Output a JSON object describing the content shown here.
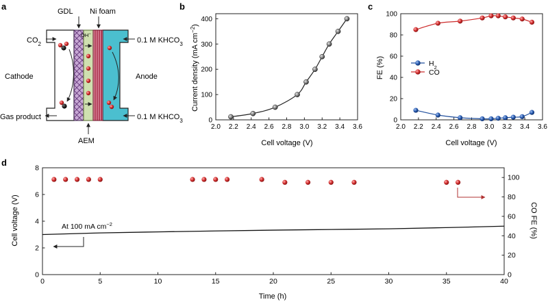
{
  "panels": {
    "a": "a",
    "b": "b",
    "c": "c",
    "d": "d"
  },
  "schematic": {
    "gdl": "GDL",
    "ni_foam": "Ni foam",
    "co2": "CO",
    "co2_sub": "2",
    "electrolyte_top": "0.1 M KHCO",
    "electrolyte_top_sub": "3",
    "electrolyte_bottom": "0.1 M KHCO",
    "electrolyte_bottom_sub": "3",
    "cathode": "Cathode",
    "anode": "Anode",
    "oh": "OH",
    "oh_sup": "−",
    "gas_product": "Gas product",
    "aem": "AEM",
    "colors": {
      "gdl": "#9b6fa8",
      "aem": "#cfe0b0",
      "nifoam": "#a01e3a",
      "anolyte": "#4bbfcf"
    }
  },
  "chart_data": [
    {
      "panel": "b",
      "type": "line",
      "title": "",
      "xlabel": "Cell voltage (V)",
      "ylabel_parts": {
        "main": "Current density (mA cm",
        "sup": "−2",
        "close": ")"
      },
      "xlim": [
        2.0,
        3.6
      ],
      "ylim": [
        0,
        420
      ],
      "xticks": [
        "2.0",
        "2.2",
        "2.4",
        "2.6",
        "2.8",
        "3.0",
        "3.2",
        "3.4",
        "3.6"
      ],
      "yticks": [
        "0",
        "100",
        "200",
        "300",
        "400"
      ],
      "series": [
        {
          "name": "Current density",
          "color": "#222222",
          "x": [
            2.17,
            2.42,
            2.67,
            2.92,
            3.02,
            3.12,
            3.2,
            3.28,
            3.38,
            3.48
          ],
          "y": [
            12,
            25,
            50,
            100,
            150,
            200,
            250,
            300,
            350,
            400
          ]
        }
      ]
    },
    {
      "panel": "c",
      "type": "line",
      "title": "",
      "xlabel": "Cell voltage (V)",
      "ylabel": "FE (%)",
      "xlim": [
        2.0,
        3.6
      ],
      "ylim": [
        0,
        100
      ],
      "xticks": [
        "2.0",
        "2.2",
        "2.4",
        "2.6",
        "2.8",
        "3.0",
        "3.2",
        "3.4",
        "3.6"
      ],
      "yticks": [
        "0",
        "20",
        "40",
        "60",
        "80",
        "100"
      ],
      "legend": [
        {
          "label": "H",
          "sub": "2",
          "color": "#1f4e9c"
        },
        {
          "label": "CO",
          "sub": "",
          "color": "#cc2a2a"
        }
      ],
      "series": [
        {
          "name": "H2",
          "color": "#1f4e9c",
          "x": [
            2.17,
            2.42,
            2.67,
            2.92,
            3.02,
            3.1,
            3.18,
            3.27,
            3.37,
            3.48
          ],
          "y": [
            9,
            4.5,
            2,
            1,
            1,
            1.5,
            2,
            2.5,
            3,
            7
          ]
        },
        {
          "name": "CO",
          "color": "#cc2a2a",
          "x": [
            2.17,
            2.42,
            2.67,
            2.92,
            3.02,
            3.1,
            3.18,
            3.27,
            3.37,
            3.48
          ],
          "y": [
            85,
            91,
            93,
            96,
            98,
            98,
            97,
            96,
            95,
            92
          ]
        }
      ]
    },
    {
      "panel": "d",
      "type": "line",
      "title": "",
      "xlabel": "Time (h)",
      "ylabel": "Cell voltage (V)",
      "y2label": "CO FE (%)",
      "xlim": [
        0,
        40
      ],
      "ylim": [
        0,
        8
      ],
      "y2lim": [
        0,
        110
      ],
      "xticks": [
        "0",
        "5",
        "10",
        "15",
        "20",
        "25",
        "30",
        "35",
        "40"
      ],
      "yticks": [
        "0",
        "2",
        "4",
        "6",
        "8"
      ],
      "y2ticks": [
        "0",
        "20",
        "40",
        "60",
        "80",
        "100"
      ],
      "annotation": {
        "text": "At 100 mA cm",
        "sup": "−2"
      },
      "voltage": {
        "name": "Cell voltage",
        "color": "#111111",
        "x": [
          0,
          5,
          10,
          15,
          20,
          25,
          30,
          35,
          40
        ],
        "y": [
          3.0,
          3.12,
          3.2,
          3.27,
          3.33,
          3.38,
          3.43,
          3.52,
          3.63
        ]
      },
      "co_fe": {
        "name": "CO FE",
        "color": "#cc2a2a",
        "x": [
          1,
          2,
          3,
          4,
          5,
          13,
          14,
          15,
          16,
          19,
          21,
          23,
          25,
          27,
          35,
          36
        ],
        "y": [
          98,
          98,
          98,
          98,
          98,
          98,
          98,
          98,
          98,
          98,
          95,
          95,
          95,
          95,
          95,
          95
        ]
      }
    }
  ]
}
